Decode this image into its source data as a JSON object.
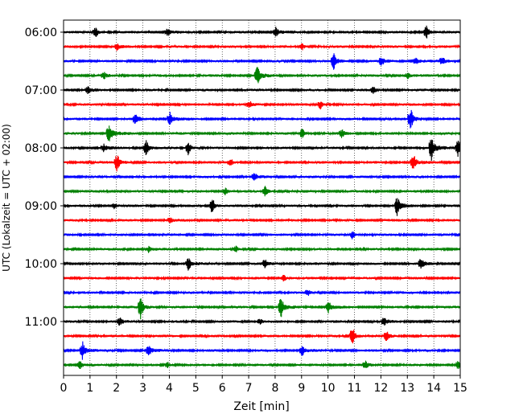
{
  "chart_data": {
    "type": "line",
    "title": "",
    "xlabel": "Zeit  [min]",
    "ylabel": "UTC (Lokalzeit = UTC + 02:00)",
    "xlim": [
      0,
      15
    ],
    "x_ticks": [
      0,
      1,
      2,
      3,
      4,
      5,
      6,
      7,
      8,
      9,
      10,
      11,
      12,
      13,
      14,
      15
    ],
    "y_tick_labels": [
      "06:00",
      "07:00",
      "08:00",
      "09:00",
      "10:00",
      "11:00"
    ],
    "y_tick_rows": [
      0,
      4,
      8,
      12,
      16,
      20
    ],
    "grid": "vertical-dotted",
    "row_colors": [
      "#000000",
      "#ff0000",
      "#0000ff",
      "#008000"
    ],
    "series": [
      {
        "start": "06:00",
        "events": [
          [
            1.2,
            0.5
          ],
          [
            3.9,
            0.4
          ],
          [
            8.0,
            0.5
          ],
          [
            13.7,
            0.7
          ]
        ]
      },
      {
        "start": "06:15",
        "events": [
          [
            2.0,
            0.3
          ],
          [
            9.0,
            0.35
          ]
        ]
      },
      {
        "start": "06:30",
        "events": [
          [
            10.2,
            0.8
          ],
          [
            12.0,
            0.4
          ],
          [
            13.3,
            0.4
          ],
          [
            14.3,
            0.4
          ]
        ]
      },
      {
        "start": "06:45",
        "events": [
          [
            1.5,
            0.3
          ],
          [
            7.3,
            1.0
          ],
          [
            13.0,
            0.3
          ]
        ]
      },
      {
        "start": "07:00",
        "events": [
          [
            0.9,
            0.3
          ],
          [
            11.7,
            0.3
          ]
        ]
      },
      {
        "start": "07:15",
        "events": [
          [
            7.0,
            0.35
          ],
          [
            9.7,
            0.45
          ]
        ]
      },
      {
        "start": "07:30",
        "events": [
          [
            2.7,
            0.5
          ],
          [
            4.0,
            0.7
          ],
          [
            13.1,
            1.0
          ]
        ]
      },
      {
        "start": "07:45",
        "events": [
          [
            1.7,
            1.1
          ],
          [
            9.0,
            0.5
          ],
          [
            10.5,
            0.35
          ]
        ]
      },
      {
        "start": "08:00",
        "events": [
          [
            1.5,
            0.4
          ],
          [
            3.1,
            0.8
          ],
          [
            4.7,
            0.7
          ],
          [
            13.9,
            1.2
          ],
          [
            14.9,
            0.9
          ]
        ]
      },
      {
        "start": "08:15",
        "events": [
          [
            2.0,
            0.9
          ],
          [
            6.3,
            0.35
          ],
          [
            13.2,
            0.9
          ]
        ]
      },
      {
        "start": "08:30",
        "events": [
          [
            7.2,
            0.35
          ]
        ]
      },
      {
        "start": "08:45",
        "events": [
          [
            6.1,
            0.35
          ],
          [
            7.6,
            0.5
          ]
        ]
      },
      {
        "start": "09:00",
        "events": [
          [
            1.9,
            0.3
          ],
          [
            5.6,
            0.8
          ],
          [
            12.6,
            0.9
          ]
        ]
      },
      {
        "start": "09:15",
        "events": [
          [
            4.0,
            0.25
          ]
        ]
      },
      {
        "start": "09:30",
        "events": [
          [
            10.9,
            0.4
          ]
        ]
      },
      {
        "start": "09:45",
        "events": [
          [
            3.2,
            0.3
          ],
          [
            6.5,
            0.3
          ]
        ]
      },
      {
        "start": "10:00",
        "events": [
          [
            4.7,
            0.7
          ],
          [
            7.6,
            0.4
          ],
          [
            13.5,
            0.5
          ]
        ]
      },
      {
        "start": "10:15",
        "events": [
          [
            8.3,
            0.4
          ]
        ]
      },
      {
        "start": "10:30",
        "events": [
          [
            9.2,
            0.3
          ]
        ]
      },
      {
        "start": "10:45",
        "events": [
          [
            2.9,
            1.1
          ],
          [
            8.2,
            1.0
          ],
          [
            10.0,
            0.6
          ]
        ]
      },
      {
        "start": "11:00",
        "events": [
          [
            2.1,
            0.4
          ],
          [
            7.4,
            0.3
          ],
          [
            12.1,
            0.4
          ]
        ]
      },
      {
        "start": "11:15",
        "events": [
          [
            10.9,
            1.0
          ],
          [
            12.2,
            0.5
          ]
        ]
      },
      {
        "start": "11:30",
        "events": [
          [
            0.7,
            0.9
          ],
          [
            3.2,
            0.5
          ],
          [
            9.0,
            0.5
          ]
        ]
      },
      {
        "start": "11:45",
        "events": [
          [
            0.6,
            0.4
          ],
          [
            3.9,
            0.3
          ],
          [
            11.4,
            0.35
          ],
          [
            14.9,
            0.4
          ]
        ]
      }
    ]
  }
}
